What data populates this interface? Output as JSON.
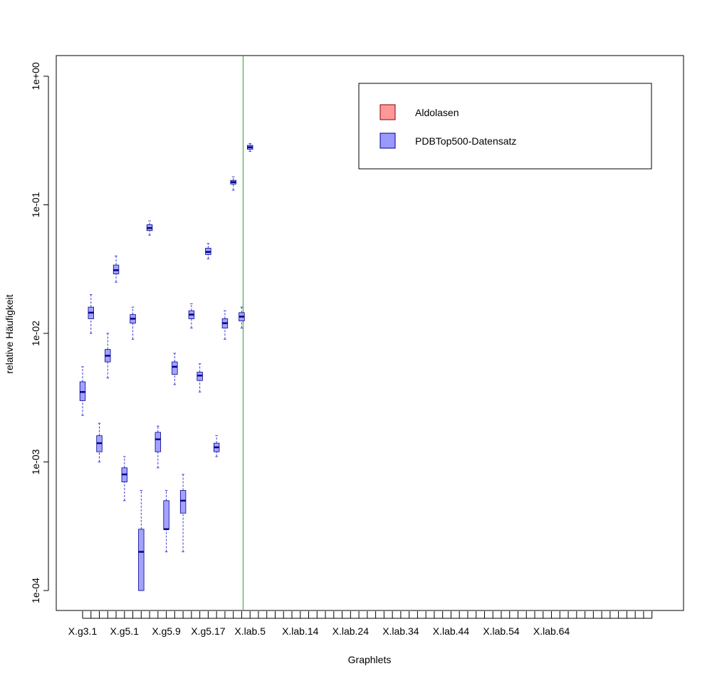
{
  "chart_data": {
    "type": "boxplot",
    "xlabel": "Graphlets",
    "ylabel": "relative Häufigkeit",
    "y_scale": "log10",
    "ylim": [
      0.0001,
      1
    ],
    "y_ticks": [
      "1e-04",
      "1e-03",
      "1e-02",
      "1e-01",
      "1e+00"
    ],
    "y_tick_values": [
      0.0001,
      0.001,
      0.01,
      0.1,
      1
    ],
    "x_tick_count": 69,
    "x_labels": [
      {
        "index": 1,
        "text": "X.g3.1"
      },
      {
        "index": 6,
        "text": "X.g5.1"
      },
      {
        "index": 11,
        "text": "X.g5.9"
      },
      {
        "index": 16,
        "text": "X.g5.17"
      },
      {
        "index": 21,
        "text": "X.lab.5"
      },
      {
        "index": 27,
        "text": "X.lab.14"
      },
      {
        "index": 33,
        "text": "X.lab.24"
      },
      {
        "index": 39,
        "text": "X.lab.34"
      },
      {
        "index": 45,
        "text": "X.lab.44"
      },
      {
        "index": 51,
        "text": "X.lab.54"
      },
      {
        "index": 57,
        "text": "X.lab.64"
      }
    ],
    "separator_after_index": 19.5,
    "separator_color": "#2ca02c",
    "legend": {
      "position": "top-right",
      "entries": [
        {
          "label": "Aldolasen",
          "color": "#ff9999"
        },
        {
          "label": "PDBTop500-Datensatz",
          "color": "#9999ff"
        }
      ]
    },
    "series": [
      {
        "name": "Aldolasen",
        "color": "#ff9999",
        "median_color": "#8b0000",
        "boxes": [
          {
            "i": 1,
            "wl": 0.0023,
            "q1": 0.003,
            "med": 0.0035,
            "q3": 0.0042,
            "wh": 0.0055
          },
          {
            "i": 2,
            "wl": 0.01,
            "q1": 0.013,
            "med": 0.0145,
            "q3": 0.016,
            "wh": 0.02
          },
          {
            "i": 3,
            "wl": 0.001,
            "q1": 0.0012,
            "med": 0.0014,
            "q3": 0.0016,
            "wh": 0.002
          },
          {
            "i": 4,
            "wl": 0.0045,
            "q1": 0.006,
            "med": 0.0067,
            "q3": 0.0075,
            "wh": 0.01
          },
          {
            "i": 5,
            "wl": 0.025,
            "q1": 0.029,
            "med": 0.031,
            "q3": 0.034,
            "wh": 0.04
          },
          {
            "i": 6,
            "wl": 0.0005,
            "q1": 0.0007,
            "med": 0.0008,
            "q3": 0.0009,
            "wh": 0.0011
          },
          {
            "i": 7,
            "wl": 0.009,
            "q1": 0.012,
            "med": 0.013,
            "q3": 0.014,
            "wh": 0.016
          },
          {
            "i": 8,
            "wl": 0.0001,
            "q1": 0.0001,
            "med": 0.0002,
            "q3": 0.0003,
            "wh": 0.0006
          },
          {
            "i": 9,
            "wl": 0.058,
            "q1": 0.063,
            "med": 0.066,
            "q3": 0.07,
            "wh": 0.075
          },
          {
            "i": 10,
            "wl": 0.0009,
            "q1": 0.0012,
            "med": 0.0015,
            "q3": 0.0017,
            "wh": 0.0019
          },
          {
            "i": 11,
            "wl": 0.0002,
            "q1": 0.0003,
            "med": 0.0003,
            "q3": 0.0005,
            "wh": 0.0006
          },
          {
            "i": 12,
            "wl": 0.004,
            "q1": 0.0048,
            "med": 0.0055,
            "q3": 0.006,
            "wh": 0.007
          },
          {
            "i": 13,
            "wl": 0.0002,
            "q1": 0.0004,
            "med": 0.0005,
            "q3": 0.0006,
            "wh": 0.0008
          },
          {
            "i": 14,
            "wl": 0.011,
            "q1": 0.013,
            "med": 0.014,
            "q3": 0.015,
            "wh": 0.017
          },
          {
            "i": 15,
            "wl": 0.0035,
            "q1": 0.0043,
            "med": 0.0047,
            "q3": 0.005,
            "wh": 0.0058
          },
          {
            "i": 16,
            "wl": 0.038,
            "q1": 0.041,
            "med": 0.043,
            "q3": 0.046,
            "wh": 0.05
          },
          {
            "i": 17,
            "wl": 0.0011,
            "q1": 0.0012,
            "med": 0.0013,
            "q3": 0.0014,
            "wh": 0.0016
          },
          {
            "i": 18,
            "wl": 0.009,
            "q1": 0.011,
            "med": 0.012,
            "q3": 0.013,
            "wh": 0.015
          },
          {
            "i": 19,
            "wl": 0.13,
            "q1": 0.145,
            "med": 0.15,
            "q3": 0.155,
            "wh": 0.165
          },
          {
            "i": 20,
            "wl": 0.011,
            "q1": 0.0125,
            "med": 0.0135,
            "q3": 0.0145,
            "wh": 0.016
          },
          {
            "i": 21,
            "wl": 0.26,
            "q1": 0.27,
            "med": 0.28,
            "q3": 0.29,
            "wh": 0.3
          }
        ]
      }
    ]
  }
}
